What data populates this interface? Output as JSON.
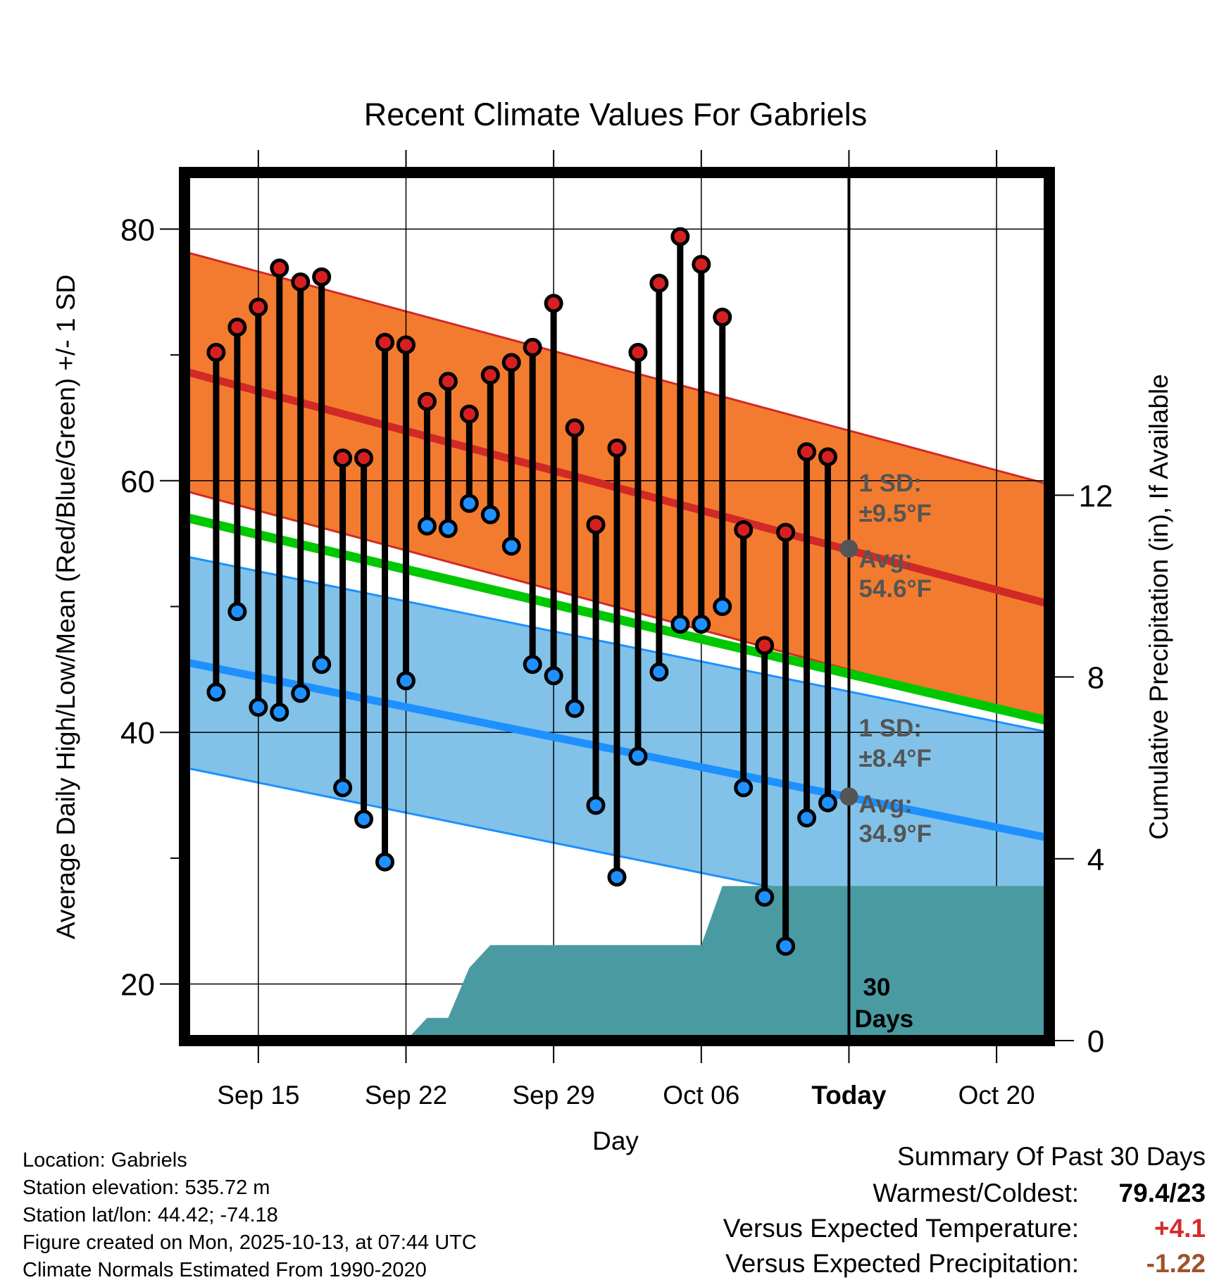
{
  "chart_data": {
    "type": "line",
    "title": "Recent Climate Values For Gabriels",
    "xlabel": "Day",
    "ylabel": "Average Daily High/Low/Mean (Red/Blue/Green) +/- 1 SD",
    "y2label": "Cumulative Precipitation (in), If Available",
    "ylim": [
      15.5,
      84.5
    ],
    "y2lim": [
      0,
      19.1
    ],
    "xlim": [
      10.5,
      51.5
    ],
    "x_ticks": [
      {
        "day": 14,
        "label": "Sep 15",
        "bold": false
      },
      {
        "day": 21,
        "label": "Sep 22",
        "bold": false
      },
      {
        "day": 28,
        "label": "Sep 29",
        "bold": false
      },
      {
        "day": 35,
        "label": "Oct 06",
        "bold": false
      },
      {
        "day": 42,
        "label": "Today",
        "bold": true
      },
      {
        "day": 49,
        "label": "Oct 20",
        "bold": false
      }
    ],
    "y_ticks": [
      20,
      40,
      60,
      80
    ],
    "y_minor_ticks": [
      30,
      50,
      70
    ],
    "y2_ticks": [
      0,
      4,
      8,
      12
    ],
    "days": [
      12,
      13,
      14,
      15,
      16,
      17,
      18,
      19,
      20,
      21,
      22,
      23,
      24,
      25,
      26,
      27,
      28,
      29,
      30,
      31,
      32,
      33,
      34,
      35,
      36,
      37,
      38,
      39,
      40,
      41
    ],
    "highs": [
      70.2,
      72.2,
      73.8,
      76.9,
      75.8,
      76.2,
      61.8,
      61.8,
      71.0,
      70.8,
      66.3,
      67.9,
      65.3,
      68.4,
      69.4,
      70.6,
      74.1,
      64.2,
      56.5,
      62.6,
      70.2,
      75.7,
      79.4,
      77.2,
      73.0,
      56.1,
      46.9,
      55.9,
      62.3,
      61.9
    ],
    "lows": [
      43.2,
      49.6,
      42.0,
      41.6,
      43.1,
      45.4,
      35.6,
      33.1,
      29.7,
      44.1,
      56.4,
      56.2,
      58.2,
      57.3,
      54.8,
      45.4,
      44.5,
      41.9,
      34.2,
      28.5,
      38.1,
      44.8,
      48.6,
      48.6,
      50.0,
      35.6,
      26.9,
      23.0,
      33.2,
      34.4
    ],
    "normal_high": {
      "start": 68.7,
      "end": 50.2,
      "sd": 9.5
    },
    "normal_low": {
      "start": 45.6,
      "end": 31.6,
      "sd": 8.4
    },
    "normal_mean": {
      "start": 57.1,
      "end": 40.9
    },
    "precip_cumulative": [
      [
        21,
        0
      ],
      [
        22,
        0.5
      ],
      [
        23,
        0.5
      ],
      [
        24,
        1.6
      ],
      [
        25,
        2.1
      ],
      [
        35,
        2.1
      ],
      [
        36,
        3.4
      ],
      [
        51.5,
        3.4
      ]
    ],
    "today_day": 42,
    "window_start_day": 12,
    "today_high_avg": 54.6,
    "today_low_avg": 34.9,
    "annotations": {
      "high_sd": "1 SD:",
      "high_sd_val": "±9.5°F",
      "high_avg": "Avg:",
      "high_avg_val": "54.6°F",
      "low_sd": "1 SD:",
      "low_sd_val": "±8.4°F",
      "low_avg": "Avg:",
      "low_avg_val": "34.9°F",
      "days_num": "30",
      "days_label": "Days"
    },
    "colors": {
      "high_band": "#f37b2f",
      "high_line": "#d12a26",
      "low_band": "#82c2e8",
      "low_line": "#1e90ff",
      "mean_line": "#00c800",
      "precip": "#4a9aa2",
      "high_marker": "#d62020",
      "low_marker": "#1e90ff",
      "annotation_text": "#555555"
    }
  },
  "info": {
    "location": "Location: Gabriels",
    "elevation": "Station elevation: 535.72 m",
    "latlon": "Station lat/lon: 44.42; -74.18",
    "created": "Figure created on Mon, 2025-10-13, at 07:44 UTC",
    "normals": "Climate Normals Estimated From 1990-2020"
  },
  "summary": {
    "title": "Summary Of Past 30 Days",
    "warmest_label": "Warmest/Coldest:",
    "warmest_value": "79.4/23",
    "temp_label": "Versus Expected Temperature:",
    "temp_value": "+4.1",
    "temp_color": "#d42a2a",
    "precip_label": "Versus Expected Precipitation:",
    "precip_value": "-1.22",
    "precip_color": "#a0522d"
  }
}
